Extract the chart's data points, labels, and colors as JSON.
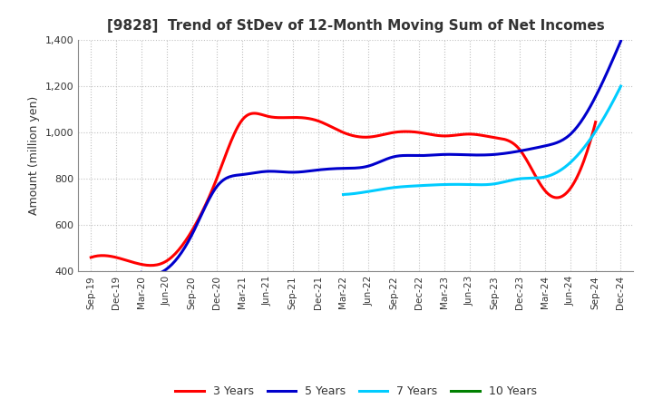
{
  "title": "[9828]  Trend of StDev of 12-Month Moving Sum of Net Incomes",
  "ylabel": "Amount (million yen)",
  "ylim": [
    400,
    1400
  ],
  "yticks": [
    400,
    600,
    800,
    1000,
    1200,
    1400
  ],
  "background_color": "#ffffff",
  "grid_color": "#bbbbbb",
  "x_labels": [
    "Sep-19",
    "Dec-19",
    "Mar-20",
    "Jun-20",
    "Sep-20",
    "Dec-20",
    "Mar-21",
    "Jun-21",
    "Sep-21",
    "Dec-21",
    "Mar-22",
    "Jun-22",
    "Sep-22",
    "Dec-22",
    "Mar-23",
    "Jun-23",
    "Sep-23",
    "Dec-23",
    "Mar-24",
    "Jun-24",
    "Sep-24",
    "Dec-24"
  ],
  "series": {
    "3 Years": {
      "color": "#ff0000",
      "data": [
        [
          "Sep-19",
          460
        ],
        [
          "Dec-19",
          460
        ],
        [
          "Mar-20",
          430
        ],
        [
          "Jun-20",
          445
        ],
        [
          "Sep-20",
          575
        ],
        [
          "Dec-20",
          805
        ],
        [
          "Mar-21",
          1055
        ],
        [
          "Jun-21",
          1070
        ],
        [
          "Sep-21",
          1065
        ],
        [
          "Dec-21",
          1050
        ],
        [
          "Mar-22",
          1000
        ],
        [
          "Jun-22",
          980
        ],
        [
          "Sep-22",
          1000
        ],
        [
          "Dec-22",
          1000
        ],
        [
          "Mar-23",
          985
        ],
        [
          "Jun-23",
          993
        ],
        [
          "Sep-23",
          978
        ],
        [
          "Dec-23",
          925
        ],
        [
          "Mar-24",
          748
        ],
        [
          "Jun-24",
          758
        ],
        [
          "Sep-24",
          1045
        ],
        [
          "Dec-24",
          null
        ]
      ]
    },
    "5 Years": {
      "color": "#0000cc",
      "data": [
        [
          "Sep-19",
          null
        ],
        [
          "Dec-19",
          null
        ],
        [
          "Mar-20",
          395
        ],
        [
          "Jun-20",
          410
        ],
        [
          "Sep-20",
          558
        ],
        [
          "Dec-20",
          768
        ],
        [
          "Mar-21",
          818
        ],
        [
          "Jun-21",
          832
        ],
        [
          "Sep-21",
          828
        ],
        [
          "Dec-21",
          838
        ],
        [
          "Mar-22",
          845
        ],
        [
          "Jun-22",
          855
        ],
        [
          "Sep-22",
          895
        ],
        [
          "Dec-22",
          900
        ],
        [
          "Mar-23",
          905
        ],
        [
          "Jun-23",
          903
        ],
        [
          "Sep-23",
          905
        ],
        [
          "Dec-23",
          920
        ],
        [
          "Mar-24",
          942
        ],
        [
          "Jun-24",
          992
        ],
        [
          "Sep-24",
          1155
        ],
        [
          "Dec-24",
          1395
        ]
      ]
    },
    "7 Years": {
      "color": "#00ccff",
      "data": [
        [
          "Sep-19",
          null
        ],
        [
          "Dec-19",
          null
        ],
        [
          "Mar-20",
          null
        ],
        [
          "Jun-20",
          null
        ],
        [
          "Sep-20",
          null
        ],
        [
          "Dec-20",
          null
        ],
        [
          "Mar-21",
          null
        ],
        [
          "Jun-21",
          null
        ],
        [
          "Sep-21",
          null
        ],
        [
          "Dec-21",
          null
        ],
        [
          "Mar-22",
          732
        ],
        [
          "Jun-22",
          745
        ],
        [
          "Sep-22",
          762
        ],
        [
          "Dec-22",
          770
        ],
        [
          "Mar-23",
          775
        ],
        [
          "Jun-23",
          775
        ],
        [
          "Sep-23",
          778
        ],
        [
          "Dec-23",
          800
        ],
        [
          "Mar-24",
          808
        ],
        [
          "Jun-24",
          870
        ],
        [
          "Sep-24",
          1005
        ],
        [
          "Dec-24",
          1200
        ]
      ]
    },
    "10 Years": {
      "color": "#008000",
      "data": [
        [
          "Sep-19",
          null
        ],
        [
          "Dec-19",
          null
        ],
        [
          "Mar-20",
          null
        ],
        [
          "Jun-20",
          null
        ],
        [
          "Sep-20",
          null
        ],
        [
          "Dec-20",
          null
        ],
        [
          "Mar-21",
          null
        ],
        [
          "Jun-21",
          null
        ],
        [
          "Sep-21",
          null
        ],
        [
          "Dec-21",
          null
        ],
        [
          "Mar-22",
          null
        ],
        [
          "Jun-22",
          null
        ],
        [
          "Sep-22",
          null
        ],
        [
          "Dec-22",
          null
        ],
        [
          "Mar-23",
          null
        ],
        [
          "Jun-23",
          null
        ],
        [
          "Sep-23",
          null
        ],
        [
          "Dec-23",
          null
        ],
        [
          "Mar-24",
          null
        ],
        [
          "Jun-24",
          null
        ],
        [
          "Sep-24",
          null
        ],
        [
          "Dec-24",
          null
        ]
      ]
    }
  },
  "legend_entries": [
    "3 Years",
    "5 Years",
    "7 Years",
    "10 Years"
  ],
  "legend_colors": [
    "#ff0000",
    "#0000cc",
    "#00ccff",
    "#008000"
  ]
}
